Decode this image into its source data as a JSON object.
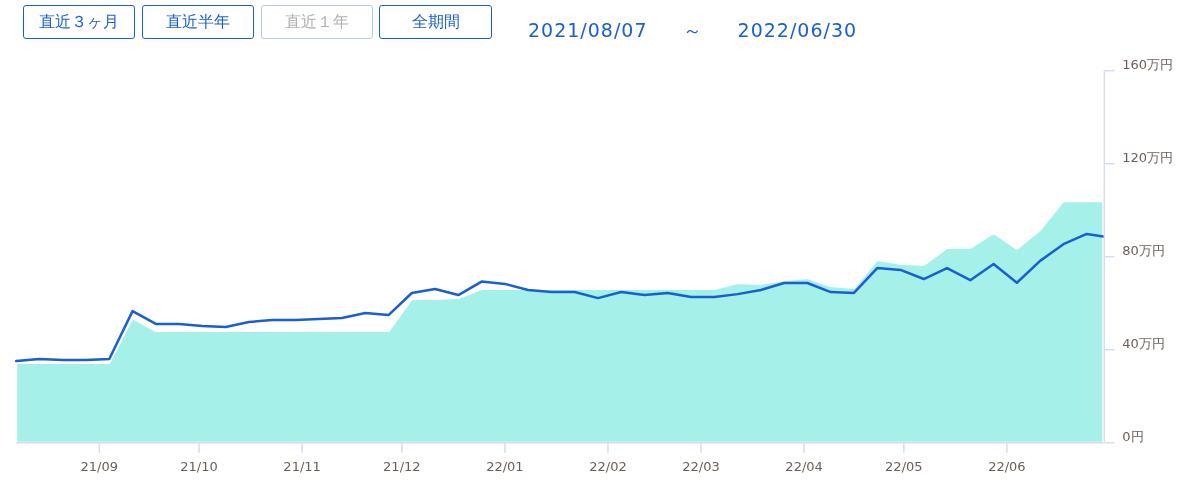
{
  "chart_data": {
    "type": "line",
    "title": "2021/08/07 ～ 2022/06/30",
    "annotations": [
      "直近３ヶ月",
      "直近半年",
      "直近１年",
      "全期間"
    ],
    "x": [
      "2021-08-07",
      "2021-08-14",
      "2021-08-21",
      "2021-08-28",
      "2021-09-04",
      "2021-09-11",
      "2021-09-18",
      "2021-09-25",
      "2021-10-02",
      "2021-10-09",
      "2021-10-16",
      "2021-10-23",
      "2021-10-30",
      "2021-11-06",
      "2021-11-13",
      "2021-11-20",
      "2021-11-27",
      "2021-12-04",
      "2021-12-11",
      "2021-12-18",
      "2021-12-25",
      "2022-01-01",
      "2022-01-08",
      "2022-01-15",
      "2022-01-22",
      "2022-01-29",
      "2022-02-05",
      "2022-02-12",
      "2022-02-19",
      "2022-02-26",
      "2022-03-05",
      "2022-03-12",
      "2022-03-19",
      "2022-03-26",
      "2022-04-02",
      "2022-04-09",
      "2022-04-16",
      "2022-04-23",
      "2022-04-30",
      "2022-05-07",
      "2022-05-14",
      "2022-05-21",
      "2022-05-28",
      "2022-06-04",
      "2022-06-11",
      "2022-06-18",
      "2022-06-25",
      "2022-06-30"
    ],
    "series": [
      {
        "type": "area",
        "color": "#a6f0ea",
        "values": [
          34.3,
          34.3,
          34.3,
          34.3,
          34.3,
          53.6,
          48.0,
          48.0,
          48.0,
          48.0,
          48.0,
          48.0,
          48.0,
          48.0,
          48.0,
          48.0,
          48.0,
          61.8,
          61.8,
          62.2,
          66.1,
          66.1,
          66.1,
          66.1,
          66.1,
          66.1,
          66.1,
          66.1,
          66.1,
          66.1,
          66.1,
          68.7,
          68.3,
          69.9,
          70.8,
          67.4,
          66.5,
          78.6,
          77.0,
          76.4,
          83.8,
          83.8,
          90.2,
          83.3,
          91.5,
          103.9,
          103.9,
          103.9
        ]
      },
      {
        "type": "line",
        "color": "#1a5fd0",
        "values": [
          35.1,
          36.0,
          35.6,
          35.6,
          36.0,
          56.6,
          51.1,
          51.1,
          50.2,
          49.8,
          51.9,
          52.8,
          52.8,
          53.2,
          53.6,
          55.8,
          54.9,
          64.4,
          66.1,
          63.5,
          69.3,
          68.3,
          65.7,
          64.8,
          64.8,
          62.2,
          64.8,
          63.5,
          64.4,
          62.7,
          62.7,
          63.9,
          65.7,
          68.7,
          68.7,
          64.8,
          64.4,
          75.1,
          74.3,
          70.4,
          75.1,
          69.9,
          76.9,
          68.8,
          78.2,
          85.4,
          89.8,
          88.7
        ]
      }
    ],
    "xlim": [
      "2021-08-07",
      "2022-06-30"
    ],
    "xticks": [
      {
        "value": "2021-09-01",
        "label": "21/09"
      },
      {
        "value": "2021-10-01",
        "label": "21/10"
      },
      {
        "value": "2021-11-01",
        "label": "21/11"
      },
      {
        "value": "2021-12-01",
        "label": "21/12"
      },
      {
        "value": "2022-01-01",
        "label": "22/01"
      },
      {
        "value": "2022-02-01",
        "label": "22/02"
      },
      {
        "value": "2022-03-01",
        "label": "22/03"
      },
      {
        "value": "2022-04-01",
        "label": "22/04"
      },
      {
        "value": "2022-05-01",
        "label": "22/05"
      },
      {
        "value": "2022-06-01",
        "label": "22/06"
      }
    ],
    "ylim": [
      0,
      160
    ],
    "yticks": [
      {
        "value": 0,
        "label": "0円"
      },
      {
        "value": 40,
        "label": "40万円"
      },
      {
        "value": 80,
        "label": "80万円"
      },
      {
        "value": 120,
        "label": "120万円"
      },
      {
        "value": 160,
        "label": "160万円"
      }
    ]
  }
}
